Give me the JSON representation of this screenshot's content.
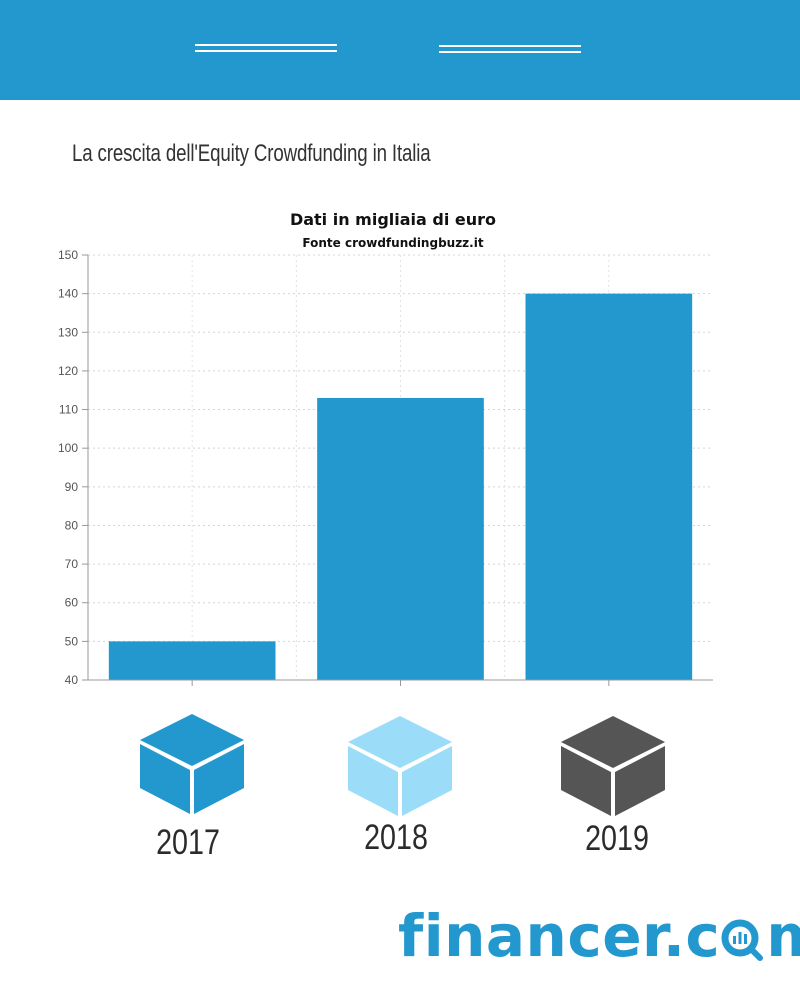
{
  "header_title": "La crescita dell'Equity Crowdfunding in Italia",
  "chart_data": {
    "type": "bar",
    "title": "Dati in migliaia di euro",
    "subtitle": "Fonte crowdfundingbuzz.it",
    "categories": [
      "2017",
      "2018",
      "2019"
    ],
    "values": [
      50,
      113,
      140
    ],
    "ylim": [
      40,
      150
    ],
    "yticks": [
      40,
      50,
      60,
      70,
      80,
      90,
      100,
      110,
      120,
      130,
      140,
      150
    ],
    "grid": true,
    "bar_color": "#2398cf"
  },
  "year_labels": [
    "2017",
    "2018",
    "2019"
  ],
  "cube_colors": [
    "#2398cf",
    "#9bdcf8",
    "#555555"
  ],
  "brand": {
    "before": "financer.c",
    "after": "m"
  },
  "colors": {
    "band": "#2398cf",
    "text": "#333333"
  }
}
